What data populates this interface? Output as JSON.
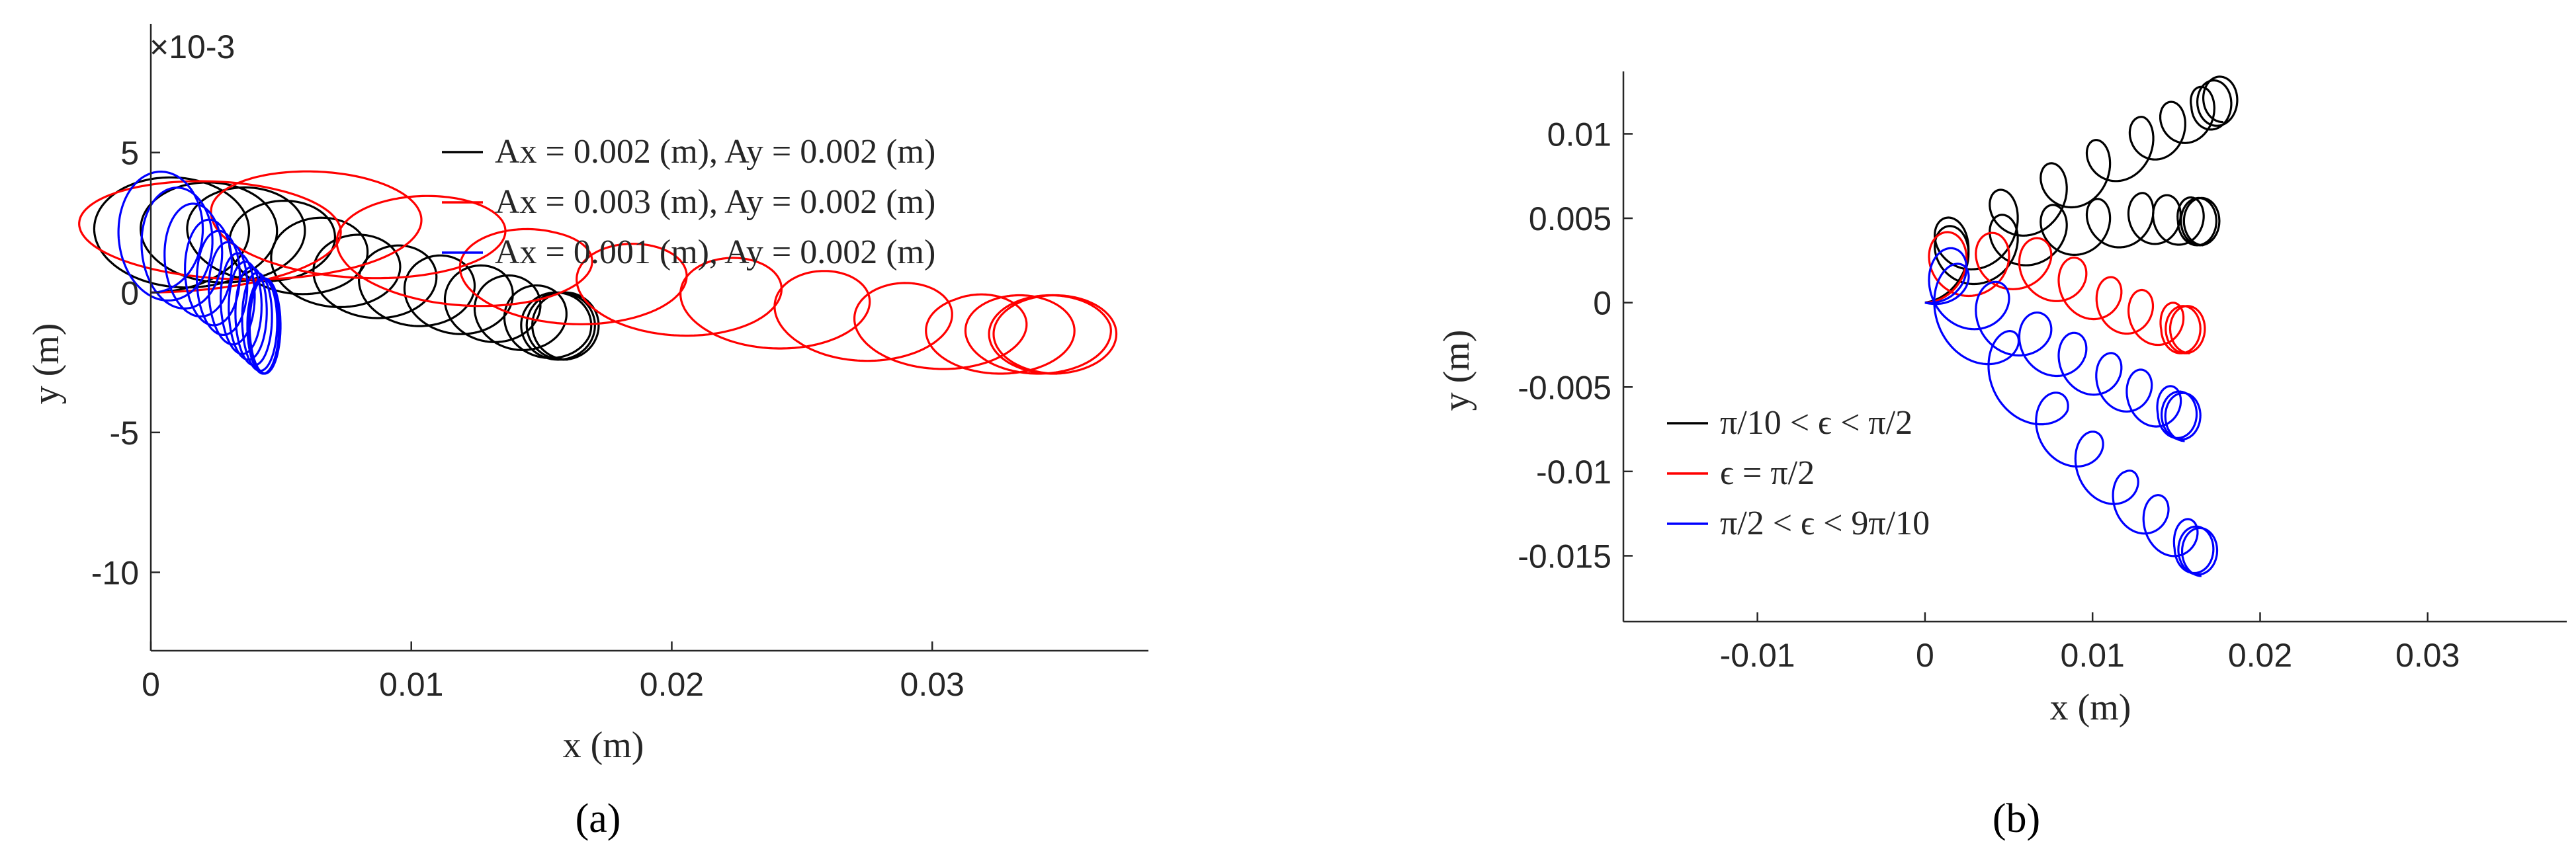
{
  "chart_data": [
    {
      "type": "line",
      "caption": "(a)",
      "xlabel": "x (m)",
      "ylabel": "y (m)",
      "y_exponent": "×10-3",
      "xlim": [
        0,
        0.0383
      ],
      "ylim": [
        -12.8,
        9.6
      ],
      "xticks": [
        0,
        0.01,
        0.02,
        0.03
      ],
      "xtick_labels": [
        "0",
        "0.01",
        "0.02",
        "0.03"
      ],
      "yticks": [
        5,
        0,
        -5,
        -10
      ],
      "ytick_labels": [
        "5",
        "0",
        "-5",
        "-10"
      ],
      "grid": false,
      "legend_position": "top-right",
      "series": [
        {
          "name": "Ax = 0.002 (m), Ay = 0.002 (m)",
          "color": "#000000",
          "drift": {
            "x": [
              0,
              0.004,
              0.008,
              0.0125,
              0.0155,
              0.016
            ],
            "y": [
              0,
              0.5,
              -0.8,
              -1.6,
              -2.4,
              -2.4
            ]
          },
          "amplitude": {
            "x": [
              0.0035,
              0.0025,
              0.002,
              0.0016,
              0.0014,
              0.0013
            ],
            "y": [
              2.1,
              1.6,
              1.4,
              1.3,
              1.2,
              1.2
            ]
          },
          "loops": 14
        },
        {
          "name": "Ax = 0.003 (m), Ay = 0.002 (m)",
          "color": "#ff0000",
          "drift": {
            "x": [
              0,
              0.007,
              0.014,
              0.021,
              0.027,
              0.032,
              0.0345,
              0.0348
            ],
            "y": [
              0,
              0.8,
              -0.9,
              -1.6,
              -2.4,
              -2.9,
              -2.9,
              -2.9
            ]
          },
          "amplitude": {
            "x": [
              0.0065,
              0.0048,
              0.0035,
              0.0028,
              0.0026,
              0.0025,
              0.0024,
              0.0024
            ],
            "y": [
              1.9,
              1.8,
              1.6,
              1.5,
              1.5,
              1.4,
              1.4,
              1.4
            ]
          },
          "loops": 12
        },
        {
          "name": "Ax = 0.001 (m), Ay = 0.002 (m)",
          "color": "#0000ff",
          "drift": {
            "x": [
              0,
              0.0022,
              0.0035,
              0.0043,
              0.0044
            ],
            "y": [
              0,
              -1.0,
              -2.2,
              -2.9,
              -2.9
            ]
          },
          "amplitude": {
            "x": [
              0.0019,
              0.001,
              0.0007,
              0.0006,
              0.0006
            ],
            "y": [
              2.3,
              1.8,
              1.7,
              1.7,
              1.7
            ]
          },
          "loops": 14
        }
      ]
    },
    {
      "type": "line",
      "caption": "(b)",
      "xlabel": "x (m)",
      "ylabel": "y (m)",
      "xlim": [
        -0.018,
        0.0383
      ],
      "ylim": [
        -0.0189,
        0.0137
      ],
      "xticks": [
        -0.01,
        0,
        0.01,
        0.02,
        0.03
      ],
      "xtick_labels": [
        "-0.01",
        "0",
        "0.01",
        "0.02",
        "0.03"
      ],
      "yticks": [
        0.01,
        0.005,
        0,
        -0.005,
        -0.01,
        -0.015
      ],
      "ytick_labels": [
        "0.01",
        "0.005",
        "0",
        "-0.005",
        "-0.01",
        "-0.015"
      ],
      "grid": false,
      "legend_position": "bottom-left",
      "series": [
        {
          "name": "π/10 < ϵ < π/2",
          "color": "#000000",
          "trajectories": [
            {
              "drift": {
                "x": [
                  0,
                  0.007,
                  0.013,
                  0.017,
                  0.0178
                ],
                "y": [
                  0,
                  0.0045,
                  0.008,
                  0.0102,
                  0.0107
                ]
              },
              "amplitude": {
                "x": [
                  0.0018,
                  0.0014,
                  0.0012,
                  0.0011,
                  0.0011
                ],
                "y": [
                  0.0021,
                  0.0017,
                  0.0015,
                  0.0014,
                  0.0014
                ]
              },
              "loops": 9
            },
            {
              "drift": {
                "x": [
                  0,
                  0.007,
                  0.013,
                  0.0162,
                  0.0166
                ],
                "y": [
                  0,
                  0.0025,
                  0.0035,
                  0.0034,
                  0.0034
                ]
              },
              "amplitude": {
                "x": [
                  0.0018,
                  0.0014,
                  0.0012,
                  0.0011,
                  0.0011
                ],
                "y": [
                  0.0021,
                  0.0016,
                  0.0015,
                  0.0014,
                  0.0014
                ]
              },
              "loops": 9
            }
          ]
        },
        {
          "name": "ϵ = π/2",
          "color": "#ff0000",
          "trajectories": [
            {
              "drift": {
                "x": [
                  0,
                  0.006,
                  0.011,
                  0.0152,
                  0.0158
                ],
                "y": [
                  0,
                  0.0009,
                  -0.0015,
                  -0.003,
                  -0.003
                ]
              },
              "amplitude": {
                "x": [
                  0.0018,
                  0.0015,
                  0.0012,
                  0.0011,
                  0.0011
                ],
                "y": [
                  0.0021,
                  0.0016,
                  0.0015,
                  0.0014,
                  0.0014
                ]
              },
              "loops": 9
            }
          ]
        },
        {
          "name": "π/2 < ϵ < 9π/10",
          "color": "#0000ff",
          "trajectories": [
            {
              "drift": {
                "x": [
                  0,
                  0.006,
                  0.011,
                  0.015,
                  0.0155
                ],
                "y": [
                  0,
                  -0.0035,
                  -0.006,
                  -0.008,
                  -0.0082
                ]
              },
              "amplitude": {
                "x": [
                  0.0018,
                  0.0015,
                  0.0012,
                  0.0011,
                  0.0011
                ],
                "y": [
                  0.0021,
                  0.0016,
                  0.0015,
                  0.0014,
                  0.0014
                ]
              },
              "loops": 9
            },
            {
              "drift": {
                "x": [
                  0,
                  0.007,
                  0.012,
                  0.016,
                  0.0165
                ],
                "y": [
                  0,
                  -0.008,
                  -0.013,
                  -0.016,
                  -0.0162
                ]
              },
              "amplitude": {
                "x": [
                  0.0018,
                  0.0015,
                  0.0012,
                  0.0011,
                  0.0011
                ],
                "y": [
                  0.0021,
                  0.0016,
                  0.0015,
                  0.0014,
                  0.0014
                ]
              },
              "loops": 9
            }
          ]
        }
      ]
    }
  ]
}
